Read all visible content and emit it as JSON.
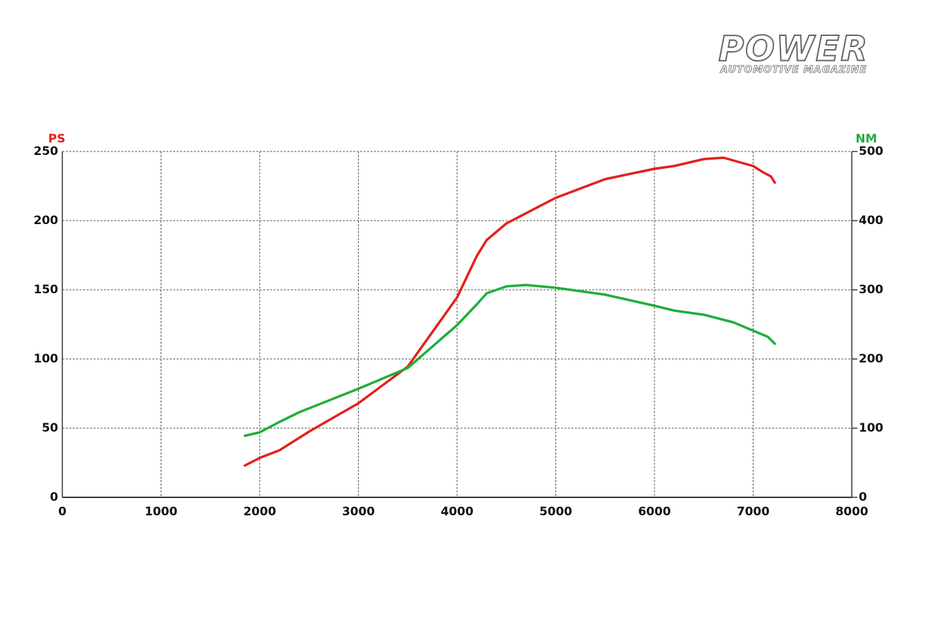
{
  "brand": {
    "name": "POWER",
    "tagline": "AUTOMOTIVE MAGAZINE"
  },
  "chart_data": {
    "type": "line",
    "y_label": "PS",
    "y2_label": "NM",
    "xlim": [
      0,
      8000
    ],
    "xticks": [
      0,
      1000,
      2000,
      3000,
      4000,
      5000,
      6000,
      7000,
      8000
    ],
    "ylim": [
      0,
      250
    ],
    "yticks": [
      0,
      50,
      100,
      150,
      200,
      250
    ],
    "y2lim": [
      0,
      500
    ],
    "y2ticks": [
      0,
      100,
      200,
      300,
      400,
      500
    ],
    "grid": true,
    "series": [
      {
        "name": "PS",
        "color": "#e3201b",
        "x": [
          1850,
          2000,
          2200,
          2500,
          3000,
          3500,
          4000,
          4200,
          4300,
          4500,
          5000,
          5500,
          6000,
          6200,
          6500,
          6700,
          7000,
          7100,
          7180,
          7220
        ],
        "values": [
          23,
          28.5,
          34,
          47.5,
          68,
          94.5,
          144.5,
          174.5,
          186,
          198,
          216.5,
          230,
          237.5,
          239.5,
          244.5,
          245.5,
          239.5,
          235,
          232,
          227.5
        ]
      },
      {
        "name": "NM",
        "color": "#1fae3b",
        "axis": "y2",
        "x": [
          1850,
          2000,
          2200,
          2400,
          3000,
          3500,
          4000,
          4200,
          4300,
          4500,
          4700,
          5000,
          5500,
          6000,
          6200,
          6500,
          6800,
          7000,
          7150,
          7220
        ],
        "values": [
          89,
          94,
          109,
          123,
          157,
          187,
          249,
          279,
          295,
          305,
          307,
          303,
          293,
          277,
          270,
          264,
          253,
          241,
          232,
          222
        ]
      }
    ]
  }
}
